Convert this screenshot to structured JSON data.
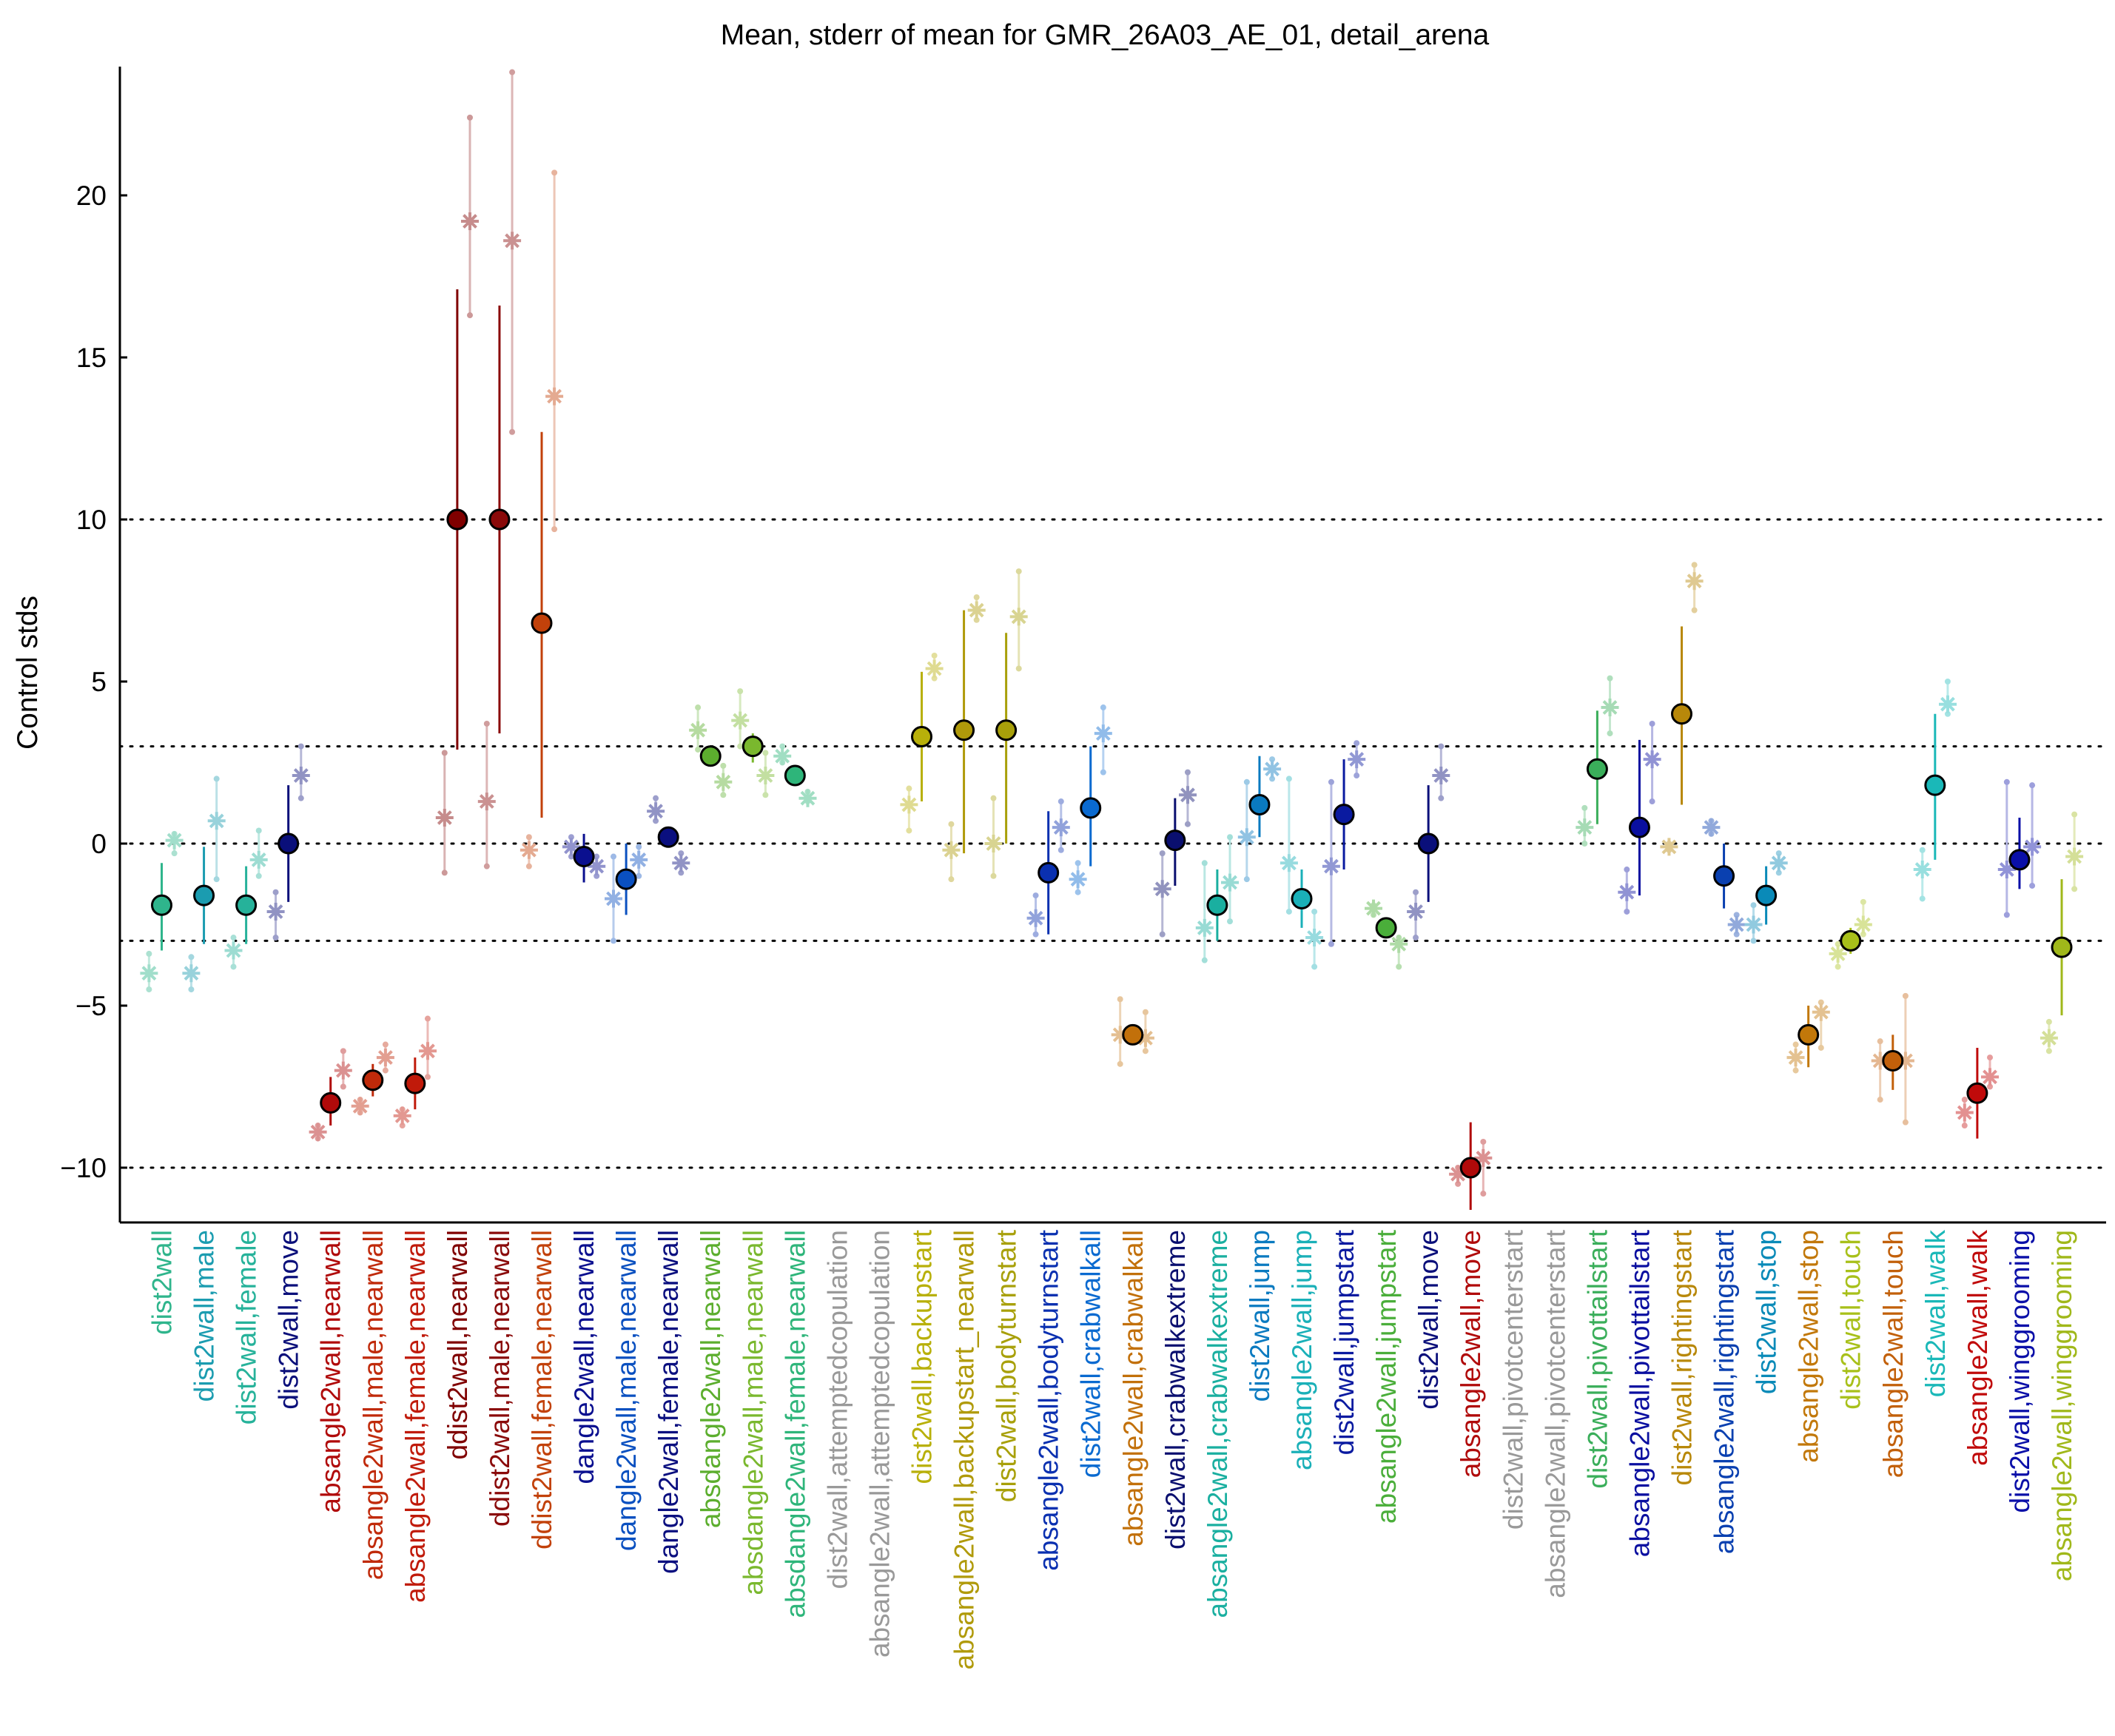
{
  "chart_data": {
    "type": "scatter",
    "title": "Mean, stderr of mean for GMR_26A03_AE_01, detail_arena",
    "xlabel": "",
    "ylabel": "Control stds",
    "ylim": [
      -11.7,
      24.0
    ],
    "yticks": [
      -10,
      -5,
      0,
      5,
      10,
      15,
      20
    ],
    "reference_lines": [
      -10,
      -3,
      0,
      3,
      10
    ],
    "grid": false,
    "legend": "none",
    "categories": [
      {
        "label": "dist2wall",
        "color": "#2fb58c",
        "main": {
          "mean": -1.9,
          "lo": -3.3,
          "hi": -0.6
        },
        "subs": [
          {
            "dx": -0.3,
            "mean": -4.0,
            "lo": -4.5,
            "hi": -3.4
          },
          {
            "dx": 0.3,
            "mean": 0.1,
            "lo": -0.3,
            "hi": 0.3
          }
        ]
      },
      {
        "label": "dist2wall,male",
        "color": "#1b9cb0",
        "main": {
          "mean": -1.6,
          "lo": -3.1,
          "hi": -0.1
        },
        "subs": [
          {
            "dx": -0.3,
            "mean": -4.0,
            "lo": -4.5,
            "hi": -3.5
          },
          {
            "dx": 0.3,
            "mean": 0.7,
            "lo": -1.1,
            "hi": 2.0
          }
        ]
      },
      {
        "label": "dist2wall,female",
        "color": "#26b29a",
        "main": {
          "mean": -1.9,
          "lo": -3.1,
          "hi": -0.7
        },
        "subs": [
          {
            "dx": -0.3,
            "mean": -3.3,
            "lo": -3.8,
            "hi": -2.9
          },
          {
            "dx": 0.3,
            "mean": -0.5,
            "lo": -1.0,
            "hi": 0.4
          }
        ]
      },
      {
        "label": "dist2wall,move",
        "color": "#0a0f7a",
        "main": {
          "mean": 0.0,
          "lo": -1.8,
          "hi": 1.8
        },
        "subs": [
          {
            "dx": -0.3,
            "mean": -2.1,
            "lo": -2.9,
            "hi": -1.5
          },
          {
            "dx": 0.3,
            "mean": 2.1,
            "lo": 1.4,
            "hi": 3.0
          }
        ]
      },
      {
        "label": "absangle2wall,nearwall",
        "color": "#b00a0a",
        "main": {
          "mean": -8.0,
          "lo": -8.7,
          "hi": -7.2
        },
        "subs": [
          {
            "dx": -0.3,
            "mean": -8.9,
            "lo": -9.1,
            "hi": -8.7
          },
          {
            "dx": 0.3,
            "mean": -7.0,
            "lo": -7.5,
            "hi": -6.4
          }
        ]
      },
      {
        "label": "absangle2wall,male,nearwall",
        "color": "#c02a0a",
        "main": {
          "mean": -7.3,
          "lo": -7.8,
          "hi": -6.8
        },
        "subs": [
          {
            "dx": -0.3,
            "mean": -8.1,
            "lo": -8.3,
            "hi": -7.9
          },
          {
            "dx": 0.3,
            "mean": -6.6,
            "lo": -7.0,
            "hi": -6.2
          }
        ]
      },
      {
        "label": "absangle2wall,female,nearwall",
        "color": "#c01a0a",
        "main": {
          "mean": -7.4,
          "lo": -8.2,
          "hi": -6.6
        },
        "subs": [
          {
            "dx": -0.3,
            "mean": -8.4,
            "lo": -8.7,
            "hi": -8.2
          },
          {
            "dx": 0.3,
            "mean": -6.4,
            "lo": -7.2,
            "hi": -5.4
          }
        ]
      },
      {
        "label": "ddist2wall,nearwall",
        "color": "#800000",
        "main": {
          "mean": 10.0,
          "lo": 2.9,
          "hi": 17.1
        },
        "subs": [
          {
            "dx": -0.3,
            "mean": 0.8,
            "lo": -0.9,
            "hi": 2.8
          },
          {
            "dx": 0.3,
            "mean": 19.2,
            "lo": 16.3,
            "hi": 22.4
          }
        ]
      },
      {
        "label": "ddist2wall,male,nearwall",
        "color": "#8a0a0a",
        "main": {
          "mean": 10.0,
          "lo": 3.4,
          "hi": 16.6
        },
        "subs": [
          {
            "dx": -0.3,
            "mean": 1.3,
            "lo": -0.7,
            "hi": 3.7
          },
          {
            "dx": 0.3,
            "mean": 18.6,
            "lo": 12.7,
            "hi": 23.8
          }
        ]
      },
      {
        "label": "ddist2wall,female,nearwall",
        "color": "#c2410a",
        "main": {
          "mean": 6.8,
          "lo": 0.8,
          "hi": 12.7
        },
        "subs": [
          {
            "dx": -0.3,
            "mean": -0.2,
            "lo": -0.7,
            "hi": 0.2
          },
          {
            "dx": 0.3,
            "mean": 13.8,
            "lo": 9.7,
            "hi": 20.7
          }
        ]
      },
      {
        "label": "dangle2wall,nearwall",
        "color": "#0a0f8f",
        "main": {
          "mean": -0.4,
          "lo": -1.2,
          "hi": 0.3
        },
        "subs": [
          {
            "dx": -0.3,
            "mean": -0.1,
            "lo": -0.4,
            "hi": 0.2
          },
          {
            "dx": 0.3,
            "mean": -0.7,
            "lo": -1.0,
            "hi": -0.4
          }
        ]
      },
      {
        "label": "dangle2wall,male,nearwall",
        "color": "#0a50c0",
        "main": {
          "mean": -1.1,
          "lo": -2.2,
          "hi": 0.0
        },
        "subs": [
          {
            "dx": -0.3,
            "mean": -1.7,
            "lo": -3.0,
            "hi": -0.4
          },
          {
            "dx": 0.3,
            "mean": -0.5,
            "lo": -1.0,
            "hi": -0.1
          }
        ]
      },
      {
        "label": "dangle2wall,female,nearwall",
        "color": "#0a0f7f",
        "main": {
          "mean": 0.2,
          "lo": -0.1,
          "hi": 0.5
        },
        "subs": [
          {
            "dx": -0.3,
            "mean": 1.0,
            "lo": 0.7,
            "hi": 1.4
          },
          {
            "dx": 0.3,
            "mean": -0.6,
            "lo": -0.9,
            "hi": -0.3
          }
        ]
      },
      {
        "label": "absdangle2wall,nearwall",
        "color": "#5cae2e",
        "main": {
          "mean": 2.7,
          "lo": 2.6,
          "hi": 2.8
        },
        "subs": [
          {
            "dx": -0.3,
            "mean": 3.5,
            "lo": 2.9,
            "hi": 4.2
          },
          {
            "dx": 0.3,
            "mean": 1.9,
            "lo": 1.5,
            "hi": 2.4
          }
        ]
      },
      {
        "label": "absdangle2wall,male,nearwall",
        "color": "#7ab82e",
        "main": {
          "mean": 3.0,
          "lo": 2.5,
          "hi": 3.4
        },
        "subs": [
          {
            "dx": -0.3,
            "mean": 3.8,
            "lo": 3.0,
            "hi": 4.7
          },
          {
            "dx": 0.3,
            "mean": 2.1,
            "lo": 1.5,
            "hi": 2.8
          }
        ]
      },
      {
        "label": "absdangle2wall,female,nearwall",
        "color": "#2eb57a",
        "main": {
          "mean": 2.1,
          "lo": 2.0,
          "hi": 2.2
        },
        "subs": [
          {
            "dx": -0.3,
            "mean": 2.7,
            "lo": 2.5,
            "hi": 3.0
          },
          {
            "dx": 0.3,
            "mean": 1.4,
            "lo": 1.3,
            "hi": 1.6
          }
        ]
      },
      {
        "label": "dist2wall,attemptedcopulation",
        "color": "#999999",
        "main": null,
        "subs": []
      },
      {
        "label": "absangle2wall,attemptedcopulation",
        "color": "#999999",
        "main": null,
        "subs": []
      },
      {
        "label": "dist2wall,backupstart",
        "color": "#b8b00a",
        "main": {
          "mean": 3.3,
          "lo": 1.3,
          "hi": 5.3
        },
        "subs": [
          {
            "dx": -0.3,
            "mean": 1.2,
            "lo": 0.4,
            "hi": 1.7
          },
          {
            "dx": 0.3,
            "mean": 5.4,
            "lo": 5.1,
            "hi": 5.8
          }
        ]
      },
      {
        "label": "absangle2wall,backupstart_nearwall",
        "color": "#b09a0a",
        "main": {
          "mean": 3.5,
          "lo": -0.3,
          "hi": 7.2
        },
        "subs": [
          {
            "dx": -0.3,
            "mean": -0.2,
            "lo": -1.1,
            "hi": 0.6
          },
          {
            "dx": 0.3,
            "mean": 7.2,
            "lo": 6.9,
            "hi": 7.6
          }
        ]
      },
      {
        "label": "dist2wall,bodyturnstart",
        "color": "#a8a00a",
        "main": {
          "mean": 3.5,
          "lo": 0.0,
          "hi": 6.5
        },
        "subs": [
          {
            "dx": -0.3,
            "mean": 0.0,
            "lo": -1.0,
            "hi": 1.4
          },
          {
            "dx": 0.3,
            "mean": 7.0,
            "lo": 5.4,
            "hi": 8.4
          }
        ]
      },
      {
        "label": "absangle2wall,bodyturnstart",
        "color": "#0a30b0",
        "main": {
          "mean": -0.9,
          "lo": -2.8,
          "hi": 1.0
        },
        "subs": [
          {
            "dx": -0.3,
            "mean": -2.3,
            "lo": -2.8,
            "hi": -1.6
          },
          {
            "dx": 0.3,
            "mean": 0.5,
            "lo": -0.2,
            "hi": 1.3
          }
        ]
      },
      {
        "label": "dist2wall,crabwalkall",
        "color": "#0a6ad0",
        "main": {
          "mean": 1.1,
          "lo": -0.7,
          "hi": 3.0
        },
        "subs": [
          {
            "dx": -0.3,
            "mean": -1.1,
            "lo": -1.5,
            "hi": -0.6
          },
          {
            "dx": 0.3,
            "mean": 3.4,
            "lo": 2.2,
            "hi": 4.2
          }
        ]
      },
      {
        "label": "absangle2wall,crabwalkall",
        "color": "#c2700a",
        "main": {
          "mean": -5.9,
          "lo": -6.1,
          "hi": -5.8
        },
        "subs": [
          {
            "dx": -0.3,
            "mean": -5.9,
            "lo": -6.8,
            "hi": -4.8
          },
          {
            "dx": 0.3,
            "mean": -6.0,
            "lo": -6.4,
            "hi": -5.2
          }
        ]
      },
      {
        "label": "dist2wall,crabwalkextreme",
        "color": "#0a0f6f",
        "main": {
          "mean": 0.1,
          "lo": -1.3,
          "hi": 1.4
        },
        "subs": [
          {
            "dx": -0.3,
            "mean": -1.4,
            "lo": -2.8,
            "hi": -0.3
          },
          {
            "dx": 0.3,
            "mean": 1.5,
            "lo": 0.6,
            "hi": 2.2
          }
        ]
      },
      {
        "label": "absangle2wall,crabwalkextreme",
        "color": "#1aafa0",
        "main": {
          "mean": -1.9,
          "lo": -3.0,
          "hi": -0.8
        },
        "subs": [
          {
            "dx": -0.3,
            "mean": -2.6,
            "lo": -3.6,
            "hi": -0.6
          },
          {
            "dx": 0.3,
            "mean": -1.2,
            "lo": -2.4,
            "hi": 0.2
          }
        ]
      },
      {
        "label": "dist2wall,jump",
        "color": "#0a7ac0",
        "main": {
          "mean": 1.2,
          "lo": 0.2,
          "hi": 2.7
        },
        "subs": [
          {
            "dx": -0.3,
            "mean": 0.2,
            "lo": -1.1,
            "hi": 1.9
          },
          {
            "dx": 0.3,
            "mean": 2.3,
            "lo": 2.0,
            "hi": 2.6
          }
        ]
      },
      {
        "label": "absangle2wall,jump",
        "color": "#1ab0b8",
        "main": {
          "mean": -1.7,
          "lo": -2.6,
          "hi": -0.8
        },
        "subs": [
          {
            "dx": -0.3,
            "mean": -0.6,
            "lo": -2.1,
            "hi": 2.0
          },
          {
            "dx": 0.3,
            "mean": -2.9,
            "lo": -3.8,
            "hi": -2.1
          }
        ]
      },
      {
        "label": "dist2wall,jumpstart",
        "color": "#0a1aa0",
        "main": {
          "mean": 0.9,
          "lo": -0.8,
          "hi": 2.6
        },
        "subs": [
          {
            "dx": -0.3,
            "mean": -0.7,
            "lo": -3.1,
            "hi": 1.9
          },
          {
            "dx": 0.3,
            "mean": 2.6,
            "lo": 2.1,
            "hi": 3.1
          }
        ]
      },
      {
        "label": "absangle2wall,jumpstart",
        "color": "#4aae3a",
        "main": {
          "mean": -2.6,
          "lo": -2.6,
          "hi": -2.6
        },
        "subs": [
          {
            "dx": -0.3,
            "mean": -2.0,
            "lo": -2.2,
            "hi": -1.9
          },
          {
            "dx": 0.3,
            "mean": -3.1,
            "lo": -3.8,
            "hi": -2.9
          }
        ]
      },
      {
        "label": "dist2wall,move",
        "color": "#0a0f7a",
        "main": {
          "mean": 0.0,
          "lo": -1.8,
          "hi": 1.8
        },
        "subs": [
          {
            "dx": -0.3,
            "mean": -2.1,
            "lo": -2.9,
            "hi": -1.5
          },
          {
            "dx": 0.3,
            "mean": 2.1,
            "lo": 1.4,
            "hi": 3.0
          }
        ]
      },
      {
        "label": "absangle2wall,move",
        "color": "#b00a0a",
        "main": {
          "mean": -10.0,
          "lo": -11.3,
          "hi": -8.6
        },
        "subs": [
          {
            "dx": -0.3,
            "mean": -10.2,
            "lo": -10.5,
            "hi": -10.0
          },
          {
            "dx": 0.3,
            "mean": -9.7,
            "lo": -10.8,
            "hi": -9.2
          }
        ]
      },
      {
        "label": "dist2wall,pivotcenterstart",
        "color": "#999999",
        "main": null,
        "subs": []
      },
      {
        "label": "absangle2wall,pivotcenterstart",
        "color": "#999999",
        "main": null,
        "subs": []
      },
      {
        "label": "dist2wall,pivottailstart",
        "color": "#3aae5a",
        "main": {
          "mean": 2.3,
          "lo": 0.6,
          "hi": 4.1
        },
        "subs": [
          {
            "dx": -0.3,
            "mean": 0.5,
            "lo": 0.0,
            "hi": 1.1
          },
          {
            "dx": 0.3,
            "mean": 4.2,
            "lo": 3.4,
            "hi": 5.1
          }
        ]
      },
      {
        "label": "absangle2wall,pivottailstart",
        "color": "#0a0fa0",
        "main": {
          "mean": 0.5,
          "lo": -1.6,
          "hi": 3.2
        },
        "subs": [
          {
            "dx": -0.3,
            "mean": -1.5,
            "lo": -2.1,
            "hi": -0.8
          },
          {
            "dx": 0.3,
            "mean": 2.6,
            "lo": 1.3,
            "hi": 3.7
          }
        ]
      },
      {
        "label": "dist2wall,rightingstart",
        "color": "#b8880a",
        "main": {
          "mean": 4.0,
          "lo": 1.2,
          "hi": 6.7
        },
        "subs": [
          {
            "dx": -0.3,
            "mean": -0.1,
            "lo": -0.2,
            "hi": 0.0
          },
          {
            "dx": 0.3,
            "mean": 8.1,
            "lo": 7.2,
            "hi": 8.6
          }
        ]
      },
      {
        "label": "absangle2wall,rightingstart",
        "color": "#0a40b0",
        "main": {
          "mean": -1.0,
          "lo": -2.0,
          "hi": 0.0
        },
        "subs": [
          {
            "dx": -0.3,
            "mean": 0.5,
            "lo": 0.3,
            "hi": 0.7
          },
          {
            "dx": 0.3,
            "mean": -2.5,
            "lo": -2.8,
            "hi": -2.2
          }
        ]
      },
      {
        "label": "dist2wall,stop",
        "color": "#0a8ab8",
        "main": {
          "mean": -1.6,
          "lo": -2.5,
          "hi": -0.7
        },
        "subs": [
          {
            "dx": -0.3,
            "mean": -2.5,
            "lo": -3.0,
            "hi": -1.9
          },
          {
            "dx": 0.3,
            "mean": -0.6,
            "lo": -0.9,
            "hi": -0.3
          }
        ]
      },
      {
        "label": "absangle2wall,stop",
        "color": "#c2780a",
        "main": {
          "mean": -5.9,
          "lo": -6.9,
          "hi": -5.0
        },
        "subs": [
          {
            "dx": -0.3,
            "mean": -6.6,
            "lo": -7.0,
            "hi": -6.2
          },
          {
            "dx": 0.3,
            "mean": -5.2,
            "lo": -6.3,
            "hi": -4.9
          }
        ]
      },
      {
        "label": "dist2wall,touch",
        "color": "#a8c01a",
        "main": {
          "mean": -3.0,
          "lo": -3.4,
          "hi": -2.6
        },
        "subs": [
          {
            "dx": -0.3,
            "mean": -3.4,
            "lo": -3.8,
            "hi": -3.1
          },
          {
            "dx": 0.3,
            "mean": -2.5,
            "lo": -2.8,
            "hi": -1.8
          }
        ]
      },
      {
        "label": "absangle2wall,touch",
        "color": "#c2600a",
        "main": {
          "mean": -6.7,
          "lo": -7.6,
          "hi": -5.9
        },
        "subs": [
          {
            "dx": -0.3,
            "mean": -6.7,
            "lo": -7.9,
            "hi": -6.1
          },
          {
            "dx": 0.3,
            "mean": -6.7,
            "lo": -8.6,
            "hi": -4.7
          }
        ]
      },
      {
        "label": "dist2wall,walk",
        "color": "#1ab8b8",
        "main": {
          "mean": 1.8,
          "lo": -0.5,
          "hi": 4.0
        },
        "subs": [
          {
            "dx": -0.3,
            "mean": -0.8,
            "lo": -1.7,
            "hi": -0.2
          },
          {
            "dx": 0.3,
            "mean": 4.3,
            "lo": 4.0,
            "hi": 5.0
          }
        ]
      },
      {
        "label": "absangle2wall,walk",
        "color": "#c00a0a",
        "main": {
          "mean": -7.7,
          "lo": -9.1,
          "hi": -6.3
        },
        "subs": [
          {
            "dx": -0.3,
            "mean": -8.3,
            "lo": -8.7,
            "hi": -7.9
          },
          {
            "dx": 0.3,
            "mean": -7.2,
            "lo": -7.5,
            "hi": -6.6
          }
        ]
      },
      {
        "label": "dist2wall,winggrooming",
        "color": "#0a0fa8",
        "main": {
          "mean": -0.5,
          "lo": -1.4,
          "hi": 0.8
        },
        "subs": [
          {
            "dx": -0.3,
            "mean": -0.8,
            "lo": -2.2,
            "hi": 1.9
          },
          {
            "dx": 0.3,
            "mean": -0.1,
            "lo": -1.3,
            "hi": 1.8
          }
        ]
      },
      {
        "label": "absangle2wall,winggrooming",
        "color": "#a0b81a",
        "main": {
          "mean": -3.2,
          "lo": -5.3,
          "hi": -1.1
        },
        "subs": [
          {
            "dx": -0.3,
            "mean": -6.0,
            "lo": -6.4,
            "hi": -5.5
          },
          {
            "dx": 0.3,
            "mean": -0.4,
            "lo": -1.4,
            "hi": 0.9
          }
        ]
      }
    ]
  }
}
